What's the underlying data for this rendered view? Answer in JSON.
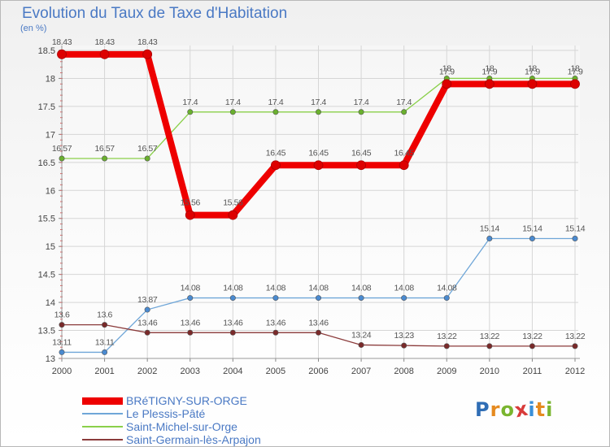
{
  "header": {
    "title": "Evolution du Taux de Taxe d'Habitation",
    "unit": "(en %)"
  },
  "brand": {
    "letters": [
      "P",
      "r",
      "o",
      "x",
      "i",
      "t",
      "i"
    ],
    "colors": [
      "#2f6db5",
      "#e58a1f",
      "#7ab52f",
      "#d83a3a",
      "#3a8fd8",
      "#e58a1f",
      "#7ab52f"
    ]
  },
  "chart_data": {
    "type": "line",
    "x": [
      "2000",
      "2001",
      "2002",
      "2003",
      "2004",
      "2005",
      "2006",
      "2007",
      "2008",
      "2009",
      "2010",
      "2011",
      "2012"
    ],
    "ylim": [
      13,
      18.5
    ],
    "yticks": [
      "13",
      "13.5",
      "14",
      "14.5",
      "15",
      "15.5",
      "16",
      "16.5",
      "17",
      "17.5",
      "18",
      "18.5"
    ],
    "grid": true,
    "legend_position": "bottom-left",
    "series": [
      {
        "name": "Saint-Michel-sur-Orge",
        "color": "#8ad04a",
        "dot": "#6ab02e",
        "width": 1.3,
        "values": [
          16.57,
          16.57,
          16.57,
          17.4,
          17.4,
          17.4,
          17.4,
          17.4,
          17.4,
          18,
          18,
          18,
          18
        ],
        "labels": [
          "16.57",
          "16.57",
          "16.57",
          "17.4",
          "17.4",
          "17.4",
          "17.4",
          "17.4",
          "17.4",
          "18",
          "18",
          "18",
          "18"
        ]
      },
      {
        "name": "Le Plessis-Pâté",
        "color": "#6fa6d8",
        "dot": "#4a8ad0",
        "width": 1.3,
        "values": [
          13.11,
          13.11,
          13.87,
          14.08,
          14.08,
          14.08,
          14.08,
          14.08,
          14.08,
          14.08,
          15.14,
          15.14,
          15.14
        ],
        "labels": [
          "13.11",
          "13.11",
          "13.87",
          "14.08",
          "14.08",
          "14.08",
          "14.08",
          "14.08",
          "14.08",
          "14.08",
          "15.14",
          "15.14",
          "15.14"
        ]
      },
      {
        "name": "Saint-Germain-lès-Arpajon",
        "color": "#8b3b3b",
        "dot": "#7a2a2a",
        "width": 1.3,
        "values": [
          13.6,
          13.6,
          13.46,
          13.46,
          13.46,
          13.46,
          13.46,
          13.24,
          13.23,
          13.22,
          13.22,
          13.22,
          13.22
        ],
        "labels": [
          "13.6",
          "13.6",
          "13.46",
          "13.46",
          "13.46",
          "13.46",
          "13.46",
          "13.24",
          "13.23",
          "13.22",
          "13.22",
          "13.22",
          "13.22"
        ]
      },
      {
        "name": "BRéTIGNY-SUR-ORGE",
        "color": "#ee0000",
        "dot": "#dd0000",
        "width": 8,
        "values": [
          18.43,
          18.43,
          18.43,
          15.56,
          15.56,
          16.45,
          16.45,
          16.45,
          16.45,
          17.9,
          17.9,
          17.9,
          17.9
        ],
        "labels": [
          "18.43",
          "18.43",
          "18.43",
          "15.56",
          "15.56",
          "16.45",
          "16.45",
          "16.45",
          "16.45",
          "17.9",
          "17.9",
          "17.9",
          "17.9"
        ]
      }
    ],
    "legend_order": [
      "BRéTIGNY-SUR-ORGE",
      "Le Plessis-Pâté",
      "Saint-Michel-sur-Orge",
      "Saint-Germain-lès-Arpajon"
    ]
  }
}
